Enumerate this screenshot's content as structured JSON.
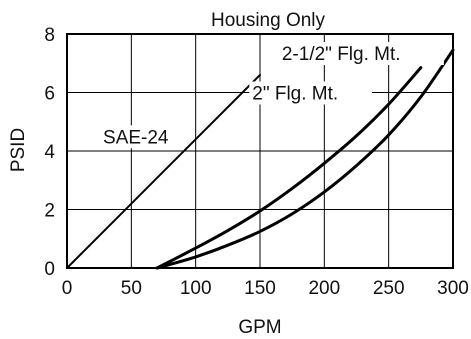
{
  "chart_data": {
    "type": "line",
    "title": "Housing Only",
    "xlabel": "GPM",
    "ylabel": "PSID",
    "xlim": [
      0,
      300
    ],
    "ylim": [
      0,
      8
    ],
    "xticks": [
      0,
      50,
      100,
      150,
      200,
      250,
      300
    ],
    "yticks": [
      0,
      2,
      4,
      6,
      8
    ],
    "grid": true,
    "series": [
      {
        "name": "SAE-24",
        "label_at": [
          28,
          4.5
        ],
        "x": [
          0,
          150
        ],
        "y": [
          0,
          6.6
        ]
      },
      {
        "name": "2\" Flg. Mt.",
        "label_at": [
          144,
          6.0
        ],
        "x": [
          70,
          100,
          125,
          150,
          175,
          200,
          225,
          250,
          275
        ],
        "y": [
          0,
          0.68,
          1.28,
          1.95,
          2.72,
          3.58,
          4.52,
          5.6,
          6.85
        ]
      },
      {
        "name": "2-1/2\" Flg. Mt.",
        "label_at": [
          167,
          7.35
        ],
        "x": [
          70,
          100,
          125,
          150,
          175,
          200,
          225,
          250,
          275,
          300
        ],
        "y": [
          0,
          0.38,
          0.78,
          1.25,
          1.85,
          2.6,
          3.5,
          4.55,
          5.85,
          7.45
        ]
      }
    ]
  }
}
